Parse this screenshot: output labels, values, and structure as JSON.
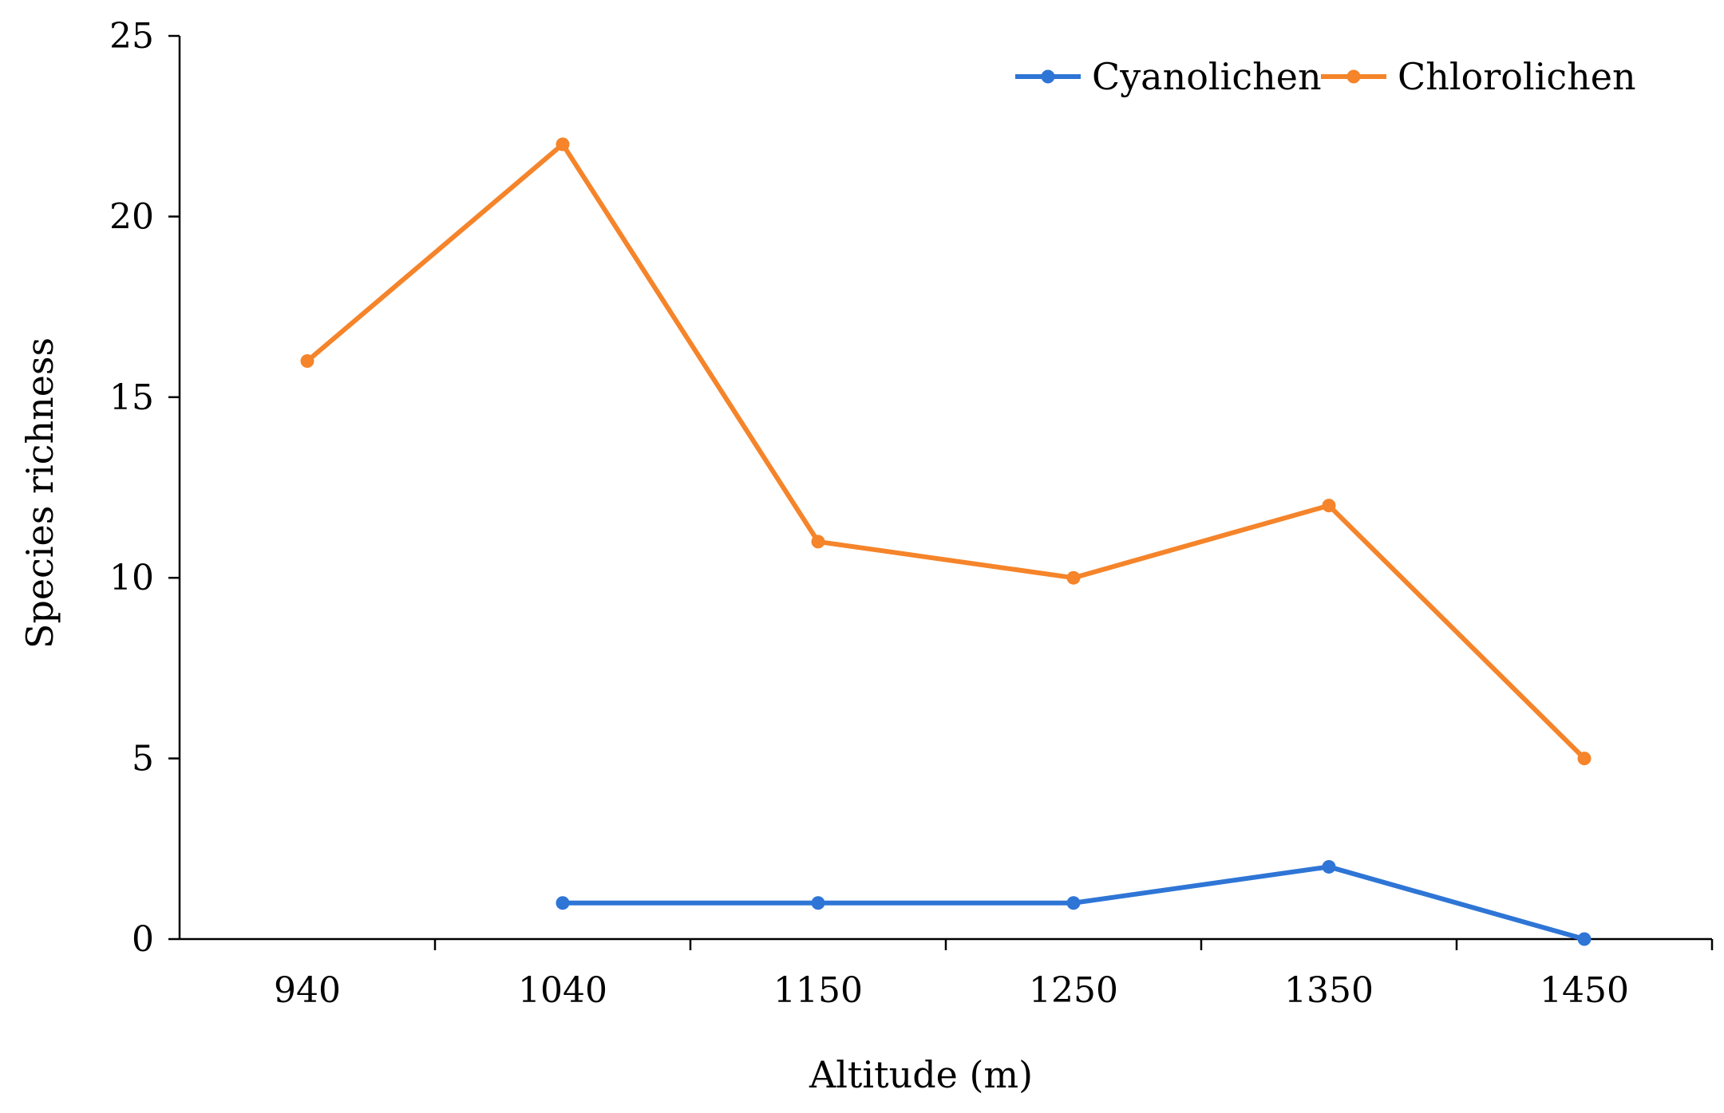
{
  "colors": {
    "cyanolichen": "#2E75D6",
    "chlorolichen": "#F5842A",
    "axis": "#000000",
    "background": "#FFFFFF"
  },
  "chart_data": {
    "type": "line",
    "title": "",
    "xlabel": "Altitude (m)",
    "ylabel": "Species richness",
    "categories": [
      "940",
      "1040",
      "1150",
      "1250",
      "1350",
      "1450"
    ],
    "ylim": [
      0,
      25
    ],
    "yticks": [
      "0",
      "5",
      "10",
      "15",
      "20",
      "25"
    ],
    "grid": false,
    "legend_position": "top-right",
    "series": [
      {
        "name": "Cyanolichen",
        "color_key": "cyanolichen",
        "values": [
          null,
          1,
          1,
          1,
          2,
          0
        ]
      },
      {
        "name": "Chlorolichen",
        "color_key": "chlorolichen",
        "values": [
          16,
          22,
          11,
          10,
          12,
          5
        ]
      }
    ]
  }
}
